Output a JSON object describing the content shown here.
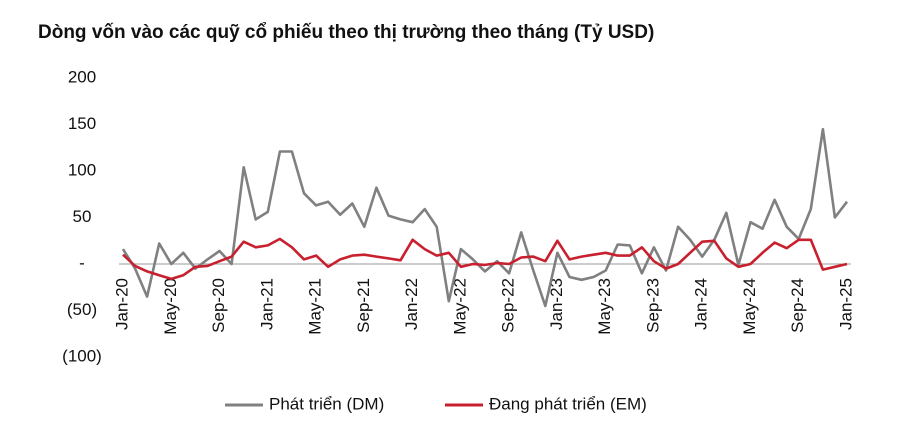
{
  "chart_data": {
    "type": "line",
    "title": "Dòng vốn vào các quỹ cổ phiếu theo thị trường theo tháng (Tỷ USD)",
    "categories": [
      "Jan-20",
      null,
      null,
      null,
      "May-20",
      null,
      null,
      null,
      "Sep-20",
      null,
      null,
      null,
      "Jan-21",
      null,
      null,
      null,
      "May-21",
      null,
      null,
      null,
      "Sep-21",
      null,
      null,
      null,
      "Jan-22",
      null,
      null,
      null,
      "May-22",
      null,
      null,
      null,
      "Sep-22",
      null,
      null,
      null,
      "Jan-23",
      null,
      null,
      null,
      "May-23",
      null,
      null,
      null,
      "Sep-23",
      null,
      null,
      null,
      "Jan-24",
      null,
      null,
      null,
      "May-24",
      null,
      null,
      null,
      "Sep-24",
      null,
      null,
      null,
      "Jan-25"
    ],
    "series": [
      {
        "name": "Phát triển (DM)",
        "color": "#808080",
        "values": [
          16,
          -5,
          -35,
          22,
          0,
          12,
          -5,
          5,
          14,
          0,
          104,
          48,
          56,
          121,
          121,
          76,
          63,
          67,
          53,
          65,
          40,
          82,
          52,
          48,
          45,
          59,
          40,
          -40,
          16,
          5,
          -8,
          3,
          -10,
          34,
          -7,
          -45,
          12,
          -14,
          -17,
          -14,
          -7,
          21,
          20,
          -10,
          18,
          -7,
          40,
          26,
          8,
          26,
          55,
          -1,
          45,
          38,
          69,
          40,
          27,
          59,
          145,
          50,
          67
        ]
      },
      {
        "name": "Đang phát triển (EM)",
        "color": "#c8202f",
        "values": [
          10,
          -2,
          -8,
          -12,
          -16,
          -12,
          -3,
          -2,
          3,
          8,
          24,
          18,
          20,
          27,
          18,
          5,
          9,
          -3,
          5,
          9,
          10,
          8,
          6,
          4,
          26,
          16,
          9,
          12,
          -3,
          0,
          -1,
          1,
          0,
          7,
          8,
          3,
          25,
          5,
          8,
          10,
          12,
          9,
          9,
          18,
          3,
          -5,
          0,
          12,
          24,
          25,
          6,
          -3,
          0,
          12,
          23,
          17,
          26,
          26,
          -6,
          -3,
          0
        ]
      }
    ],
    "ylim": [
      -100,
      200
    ],
    "yticks": [
      200,
      150,
      100,
      50,
      {
        "value": 0,
        "label": "-"
      },
      {
        "value": -50,
        "label": "(50)"
      },
      {
        "value": -100,
        "label": "(100)"
      }
    ],
    "grid": false
  }
}
